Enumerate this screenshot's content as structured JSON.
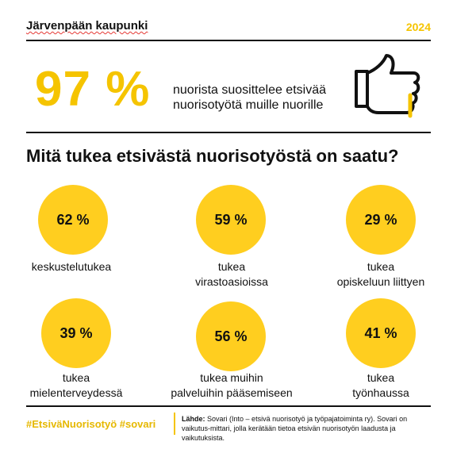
{
  "header": {
    "org": "Järvenpään kaupunki",
    "year": "2024"
  },
  "hero": {
    "percent": "97 %",
    "statement_line1": "nuorista suosittelee etsivää",
    "statement_line2": "nuorisotyötä muille nuorille",
    "icon": "thumbs-up-icon"
  },
  "section_title": "Mitä tukea etsivästä nuorisotyöstä on saatu?",
  "stats": [
    {
      "value": "62 %",
      "line1": "keskustelutukea",
      "line2": ""
    },
    {
      "value": "59 %",
      "line1": "tukea",
      "line2": "virastoasioissa"
    },
    {
      "value": "29 %",
      "line1": "tukea",
      "line2": "opiskeluun liittyen"
    },
    {
      "value": "39 %",
      "line1": "tukea",
      "line2": "mielenterveydessä"
    },
    {
      "value": "56 %",
      "line1": "tukea muihin",
      "line2": "palveluihin pääsemiseen"
    },
    {
      "value": "41 %",
      "line1": "tukea",
      "line2": "työnhaussa"
    }
  ],
  "footer": {
    "hashtags": "#EtsiväNuorisotyö #sovari",
    "source_label": "Lähde:",
    "source_text": "Sovari (Into – etsivä nuorisotyö ja työpajatoiminta ry). Sovari on vaikutus-mittari, jolla kerätään tietoa etsivän nuorisotyön laadusta ja vaikutuksista."
  },
  "colors": {
    "accent": "#f5c400",
    "circle": "#ffce1f",
    "text": "#111111"
  }
}
